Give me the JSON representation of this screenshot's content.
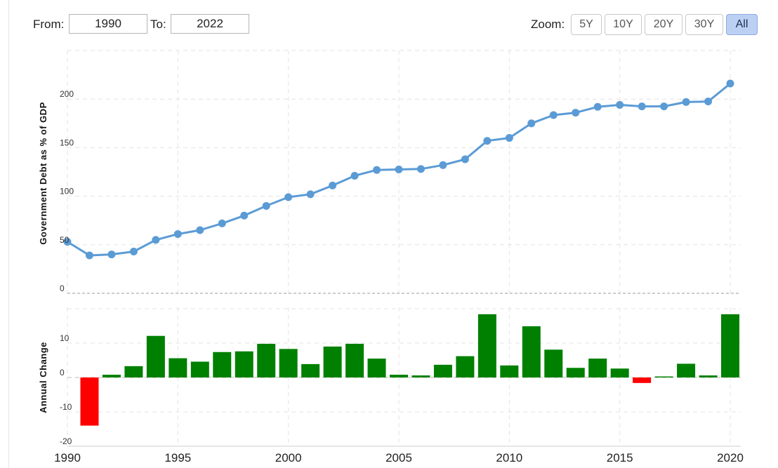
{
  "range": {
    "from_label": "From:",
    "from_value": "1990",
    "to_label": "To:",
    "to_value": "2022"
  },
  "zoom": {
    "label": "Zoom:",
    "buttons": [
      "5Y",
      "10Y",
      "20Y",
      "30Y",
      "All"
    ],
    "active": "All"
  },
  "colors": {
    "line": "#5b9bd5",
    "positive": "#008000",
    "negative": "#ff0000"
  },
  "chart_data": [
    {
      "type": "line",
      "ylabel": "Government Debt as % of GDP",
      "ylim": [
        0,
        250
      ],
      "yticks": [
        "0",
        "50",
        "100",
        "150",
        "200"
      ],
      "grid": true,
      "x": [
        1990,
        1991,
        1992,
        1993,
        1994,
        1995,
        1996,
        1997,
        1998,
        1999,
        2000,
        2001,
        2002,
        2003,
        2004,
        2005,
        2006,
        2007,
        2008,
        2009,
        2010,
        2011,
        2012,
        2013,
        2014,
        2015,
        2016,
        2017,
        2018,
        2019,
        2020
      ],
      "values": [
        53,
        39,
        40,
        43,
        55,
        61,
        65,
        72,
        80,
        90,
        99,
        102,
        111,
        121,
        127,
        127.5,
        128,
        132,
        138,
        157,
        160,
        175,
        183.5,
        186,
        192,
        194,
        192.5,
        192.5,
        197,
        197.5,
        216
      ]
    },
    {
      "type": "bar",
      "ylabel": "Annual Change",
      "ylim": [
        -20,
        20
      ],
      "yticks": [
        "10",
        "0",
        "-10",
        "-20"
      ],
      "grid": true,
      "x": [
        1991,
        1992,
        1993,
        1994,
        1995,
        1996,
        1997,
        1998,
        1999,
        2000,
        2001,
        2002,
        2003,
        2004,
        2005,
        2006,
        2007,
        2008,
        2009,
        2010,
        2011,
        2012,
        2013,
        2014,
        2015,
        2016,
        2017,
        2018,
        2019,
        2020
      ],
      "values": [
        -14,
        0.8,
        3.3,
        12.1,
        5.6,
        4.6,
        7.4,
        7.6,
        9.8,
        8.3,
        3.9,
        9.0,
        9.8,
        5.5,
        0.8,
        0.6,
        3.7,
        6.2,
        18.4,
        3.5,
        14.9,
        8.1,
        2.8,
        5.5,
        2.6,
        -1.6,
        0.3,
        4.0,
        0.6,
        18.4
      ],
      "xticks": [
        "1990",
        "1995",
        "2000",
        "2005",
        "2010",
        "2015",
        "2020"
      ]
    }
  ]
}
